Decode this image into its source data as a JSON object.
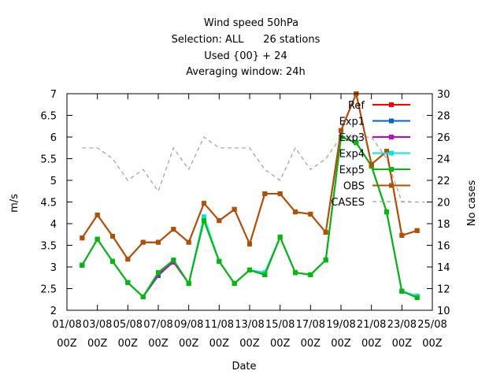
{
  "chart_data": {
    "type": "line",
    "title_lines": [
      "Wind speed 50hPa",
      "Selection: ALL      26 stations",
      "Used {00} + 24",
      "Averaging window: 24h"
    ],
    "xlabel": "Date",
    "ylabel": "m/s",
    "y2label": "No cases",
    "ylim": [
      2,
      7
    ],
    "y2lim": [
      10,
      30
    ],
    "y_ticks": [
      "2",
      "2.5",
      "3",
      "3.5",
      "4",
      "4.5",
      "5",
      "5.5",
      "6",
      "6.5",
      "7"
    ],
    "y2_ticks": [
      "10",
      "12",
      "14",
      "16",
      "18",
      "20",
      "22",
      "24",
      "26",
      "28",
      "30"
    ],
    "x_ticks": [
      {
        "date": "01/08",
        "l1": "01/08",
        "l2": "00Z"
      },
      {
        "date": "03/08",
        "l1": "03/08",
        "l2": "00Z"
      },
      {
        "date": "05/08",
        "l1": "05/08",
        "l2": "00Z"
      },
      {
        "date": "07/08",
        "l1": "07/08",
        "l2": "00Z"
      },
      {
        "date": "09/08",
        "l1": "09/08",
        "l2": "00Z"
      },
      {
        "date": "11/08",
        "l1": "11/08",
        "l2": "00Z"
      },
      {
        "date": "13/08",
        "l1": "13/08",
        "l2": "00Z"
      },
      {
        "date": "15/08",
        "l1": "15/08",
        "l2": "00Z"
      },
      {
        "date": "17/08",
        "l1": "17/08",
        "l2": "00Z"
      },
      {
        "date": "19/08",
        "l1": "19/08",
        "l2": "00Z"
      },
      {
        "date": "21/08",
        "l1": "21/08",
        "l2": "00Z"
      },
      {
        "date": "23/08",
        "l1": "23/08",
        "l2": "00Z"
      },
      {
        "date": "25/08",
        "l1": "25/08",
        "l2": "00Z"
      }
    ],
    "x": [
      "02/08 00Z",
      "03/08 00Z",
      "04/08 00Z",
      "05/08 00Z",
      "06/08 00Z",
      "07/08 00Z",
      "08/08 00Z",
      "09/08 00Z",
      "10/08 00Z",
      "11/08 00Z",
      "12/08 00Z",
      "13/08 00Z",
      "14/08 00Z",
      "15/08 00Z",
      "16/08 00Z",
      "17/08 00Z",
      "18/08 00Z",
      "19/08 00Z",
      "20/08 00Z",
      "21/08 00Z",
      "22/08 00Z",
      "23/08 00Z",
      "24/08 00Z"
    ],
    "series": [
      {
        "name": "Ref",
        "color": "#ff0000",
        "marker": "circle",
        "values": [
          3.67,
          4.2,
          3.71,
          3.18,
          3.57,
          3.57,
          3.87,
          3.57,
          4.47,
          4.07,
          4.33,
          3.53,
          4.69,
          4.69,
          4.27,
          4.22,
          3.8,
          6.15,
          7.0,
          5.37,
          5.67,
          3.73,
          3.84
        ]
      },
      {
        "name": "Exp1",
        "color": "#0066cc",
        "marker": "circle",
        "values": [
          3.04,
          3.64,
          3.13,
          2.64,
          2.31,
          2.8,
          3.13,
          2.62,
          4.1,
          3.13,
          2.62,
          2.93,
          2.82,
          3.69,
          2.87,
          2.82,
          3.16,
          6.0,
          5.87,
          5.33,
          4.27,
          2.44,
          2.31
        ]
      },
      {
        "name": "Exp3",
        "color": "#cc00cc",
        "marker": "circle",
        "values": [
          3.04,
          3.64,
          3.13,
          2.64,
          2.31,
          2.83,
          3.11,
          2.62,
          4.1,
          3.13,
          2.62,
          2.93,
          2.82,
          3.69,
          2.87,
          2.82,
          3.16,
          6.0,
          5.87,
          5.33,
          4.27,
          2.44,
          2.31
        ]
      },
      {
        "name": "Exp4",
        "color": "#00e5e5",
        "marker": "circle",
        "values": [
          3.04,
          3.64,
          3.13,
          2.64,
          2.31,
          2.87,
          3.16,
          2.62,
          4.16,
          3.13,
          2.62,
          2.93,
          2.87,
          3.69,
          2.87,
          2.82,
          3.16,
          6.0,
          5.87,
          5.33,
          4.27,
          2.44,
          2.33
        ]
      },
      {
        "name": "Exp5",
        "color": "#00bb00",
        "marker": "circle",
        "values": [
          3.04,
          3.64,
          3.13,
          2.64,
          2.31,
          2.87,
          3.16,
          2.62,
          4.07,
          3.13,
          2.62,
          2.93,
          2.82,
          3.69,
          2.87,
          2.82,
          3.16,
          6.0,
          5.87,
          5.33,
          4.27,
          2.44,
          2.29
        ]
      },
      {
        "name": "OBS",
        "color": "#b05000",
        "marker": "circle",
        "values": [
          3.67,
          4.2,
          3.71,
          3.18,
          3.57,
          3.57,
          3.87,
          3.57,
          4.47,
          4.07,
          4.33,
          3.53,
          4.69,
          4.69,
          4.27,
          4.22,
          3.8,
          6.15,
          7.0,
          5.37,
          5.67,
          3.73,
          3.84
        ]
      }
    ],
    "cases": {
      "name": "CASES",
      "color": "#a0a0a0",
      "axis": "right",
      "style": "dashed",
      "x": [
        "02/08 00Z",
        "03/08 00Z",
        "04/08 00Z",
        "05/08 00Z",
        "06/08 00Z",
        "07/08 00Z",
        "08/08 00Z",
        "09/08 00Z",
        "10/08 00Z",
        "11/08 00Z",
        "12/08 00Z",
        "13/08 00Z",
        "14/08 00Z",
        "15/08 00Z",
        "16/08 00Z",
        "17/08 00Z",
        "18/08 00Z",
        "19/08 00Z",
        "20/08 00Z",
        "21/08 00Z",
        "22/08 00Z",
        "23/08 00Z",
        "24/08 12Z"
      ],
      "values": [
        25,
        25,
        24,
        22,
        23,
        21,
        25,
        23,
        26,
        25,
        25,
        25,
        23,
        22,
        25,
        23,
        24,
        26,
        26,
        26,
        24,
        20,
        20
      ]
    },
    "legend": {
      "placement": "top-right",
      "order": [
        "Ref",
        "Exp1",
        "Exp3",
        "Exp4",
        "Exp5",
        "OBS",
        "CASES"
      ]
    },
    "grid": false
  }
}
